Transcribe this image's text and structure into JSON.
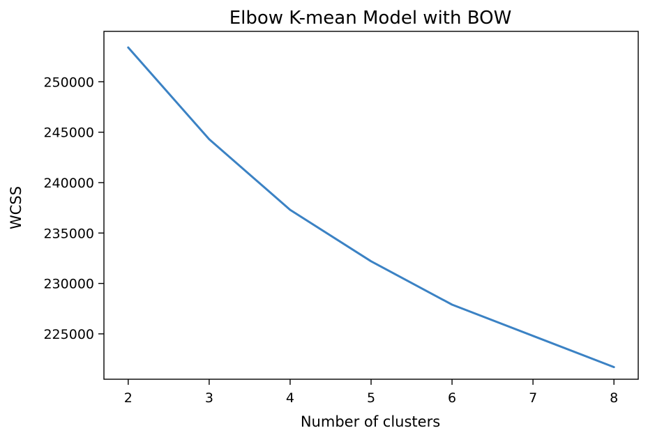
{
  "chart_data": {
    "type": "line",
    "title": "Elbow K-mean Model with BOW",
    "xlabel": "Number of clusters",
    "ylabel": "WCSS",
    "x": [
      2,
      3,
      4,
      5,
      6,
      7,
      8
    ],
    "x_ticks": [
      "2",
      "3",
      "4",
      "5",
      "6",
      "7",
      "8"
    ],
    "y_ticks": [
      "225000",
      "230000",
      "235000",
      "240000",
      "245000",
      "250000"
    ],
    "y_tick_values": [
      225000,
      230000,
      235000,
      240000,
      245000,
      250000
    ],
    "xlim": [
      1.7,
      8.3
    ],
    "ylim": [
      220500,
      255000
    ],
    "grid": false,
    "series": [
      {
        "name": "WCSS",
        "color": "#3b82c4",
        "values": [
          253400,
          244300,
          237300,
          232200,
          227900,
          224800,
          221700
        ]
      }
    ]
  }
}
